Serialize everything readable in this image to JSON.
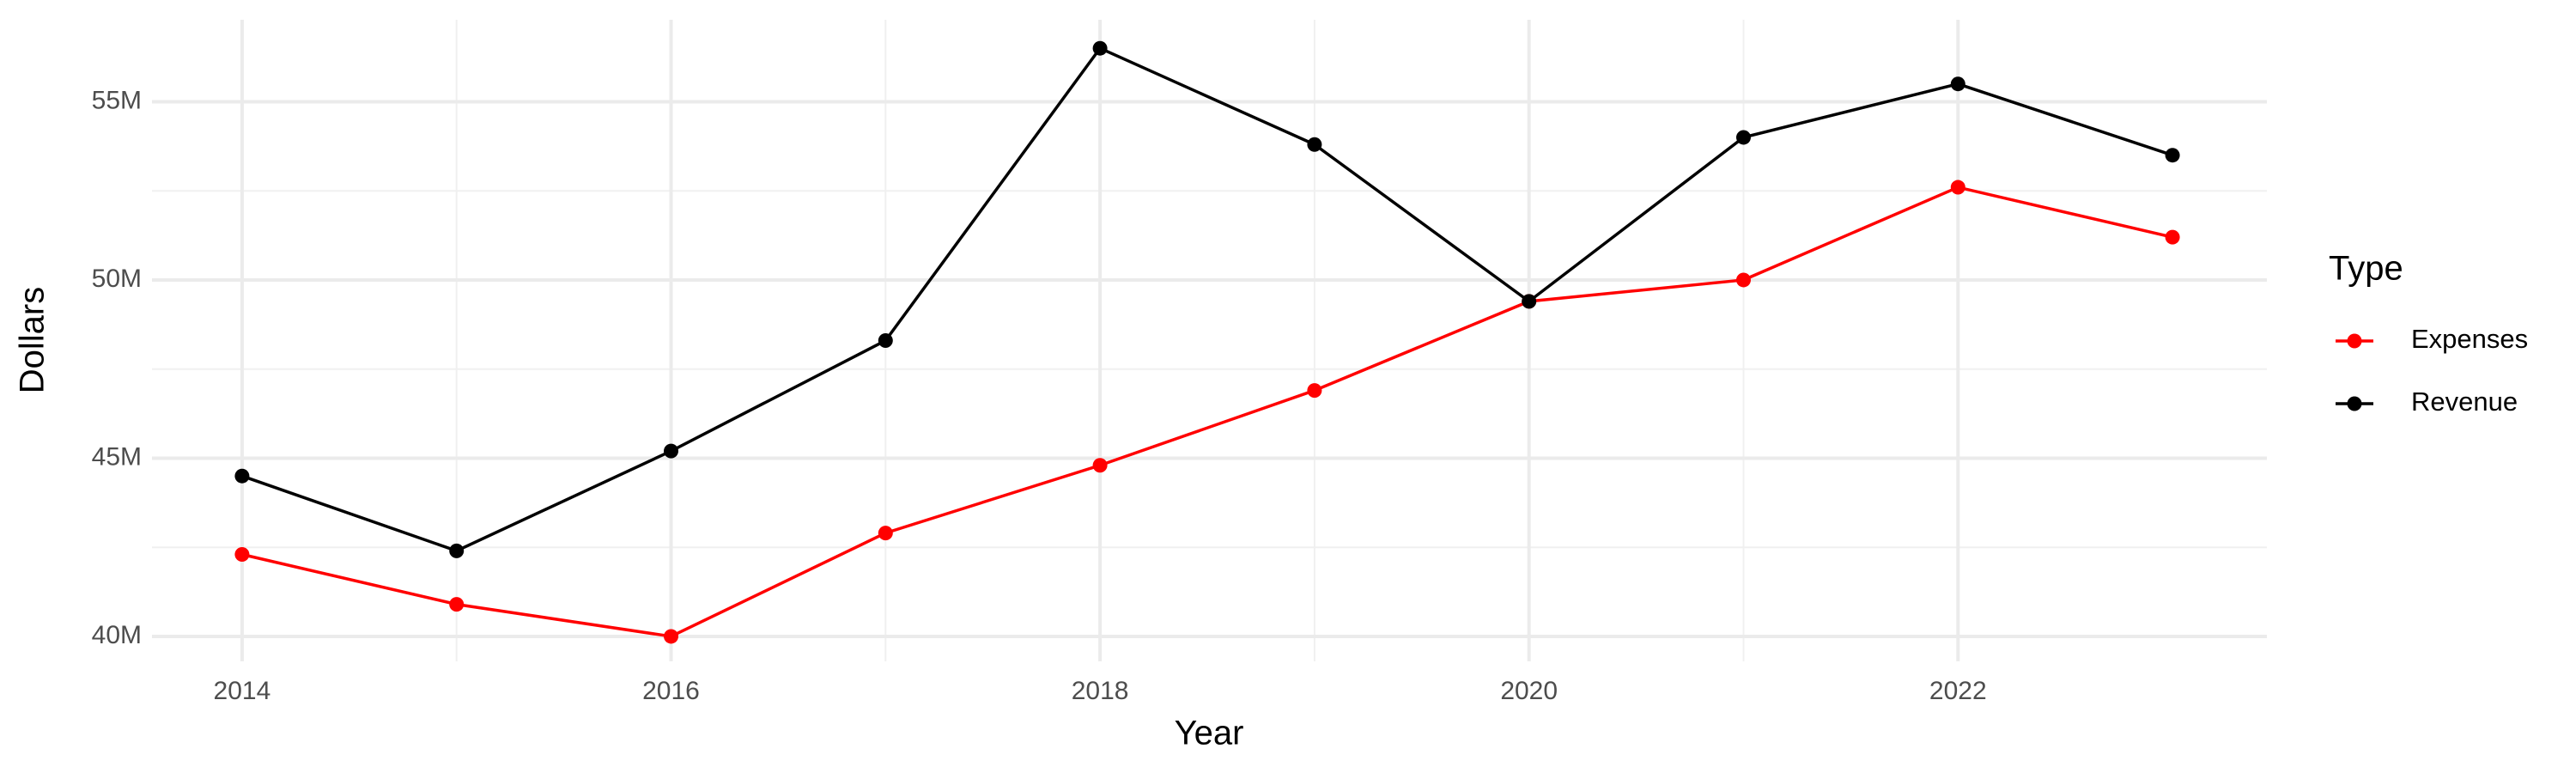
{
  "chart_data": {
    "type": "line",
    "x_label": "Year",
    "y_label": "Dollars",
    "legend_title": "Type",
    "x": [
      2014,
      2015,
      2016,
      2017,
      2018,
      2019,
      2020,
      2021,
      2022,
      2023
    ],
    "series": [
      {
        "name": "Expenses",
        "color": "#ff0000",
        "values": [
          42300000,
          40900000,
          40000000,
          42900000,
          44800000,
          46900000,
          49400000,
          50000000,
          52600000,
          51200000
        ]
      },
      {
        "name": "Revenue",
        "color": "#000000",
        "values": [
          44500000,
          42400000,
          45200000,
          48300000,
          56500000,
          53800000,
          49400000,
          54000000,
          55500000,
          53500000
        ]
      }
    ],
    "xlim": [
      2013.58,
      2023.44
    ],
    "xticks": [
      2014,
      2016,
      2018,
      2020,
      2022
    ],
    "ylim": [
      39300000,
      57300000
    ],
    "yticks": [
      {
        "value": 40000000,
        "label": "40M"
      },
      {
        "value": 45000000,
        "label": "45M"
      },
      {
        "value": 50000000,
        "label": "50M"
      },
      {
        "value": 55000000,
        "label": "55M"
      }
    ],
    "grid": true,
    "legend": "right"
  }
}
